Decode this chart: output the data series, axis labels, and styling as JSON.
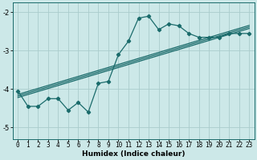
{
  "xlabel": "Humidex (Indice chaleur)",
  "ylabel": "",
  "bg_color": "#cce8e8",
  "line_color": "#1a6b6b",
  "grid_color": "#aacccc",
  "xlim": [
    -0.5,
    23.5
  ],
  "ylim": [
    -5.3,
    -1.75
  ],
  "yticks": [
    -5,
    -4,
    -3,
    -2
  ],
  "xticks": [
    0,
    1,
    2,
    3,
    4,
    5,
    6,
    7,
    8,
    9,
    10,
    11,
    12,
    13,
    14,
    15,
    16,
    17,
    18,
    19,
    20,
    21,
    22,
    23
  ],
  "main_line_x": [
    0,
    1,
    2,
    3,
    4,
    5,
    6,
    7,
    8,
    9,
    10,
    11,
    12,
    13,
    14,
    15,
    16,
    17,
    18,
    19,
    20,
    21,
    22,
    23
  ],
  "main_line_y": [
    -4.05,
    -4.45,
    -4.45,
    -4.25,
    -4.25,
    -4.55,
    -4.35,
    -4.6,
    -3.85,
    -3.8,
    -3.1,
    -2.75,
    -2.15,
    -2.1,
    -2.45,
    -2.3,
    -2.35,
    -2.55,
    -2.65,
    -2.65,
    -2.65,
    -2.55,
    -2.55,
    -2.55
  ],
  "reg_line1_x": [
    0,
    23
  ],
  "reg_line1_y": [
    -4.18,
    -2.38
  ],
  "reg_line2_x": [
    0,
    23
  ],
  "reg_line2_y": [
    -4.22,
    -2.42
  ],
  "reg_line3_x": [
    0,
    23
  ],
  "reg_line3_y": [
    -4.14,
    -2.34
  ],
  "marker": "D",
  "marker_size": 2.2,
  "tick_fontsize": 5.5,
  "xlabel_fontsize": 6.5
}
